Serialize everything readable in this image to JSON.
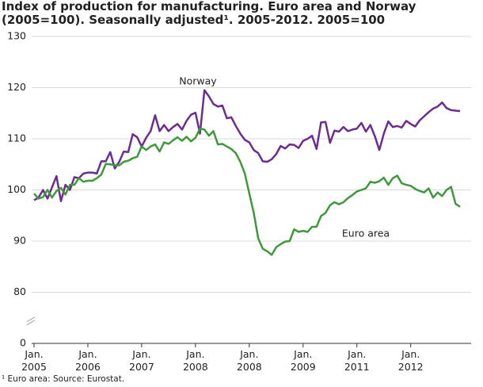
{
  "chart_data": {
    "type": "line",
    "title": "Index of production for manufacturing. Euro area and Norway (2005=100). Seasonally adjusted¹. 2005-2012. 2005=100",
    "note": "¹ Euro area: Source: Eurostat.",
    "categories": [
      "Jan.\n2005",
      null,
      null,
      null,
      null,
      null,
      null,
      null,
      null,
      null,
      null,
      null,
      "Jan.\n2006",
      null,
      null,
      null,
      null,
      null,
      null,
      null,
      null,
      null,
      null,
      null,
      "Jan.\n2007",
      null,
      null,
      null,
      null,
      null,
      null,
      null,
      null,
      null,
      null,
      null,
      "Jan.\n2008",
      null,
      null,
      null,
      null,
      null,
      null,
      null,
      null,
      null,
      null,
      null,
      "Jan.\n2008",
      null,
      null,
      null,
      null,
      null,
      null,
      null,
      null,
      null,
      null,
      null,
      "Jan.\n2009",
      null,
      null,
      null,
      null,
      null,
      null,
      null,
      null,
      null,
      null,
      null,
      "Jan.\n2011",
      null,
      null,
      null,
      null,
      null,
      null,
      null,
      null,
      null,
      null,
      null,
      "Jan.\n2012",
      null,
      null,
      null,
      null,
      null,
      null,
      null,
      null,
      null,
      null,
      null
    ],
    "series": [
      {
        "name": "Norway",
        "color": "#6b2d8f",
        "values": [
          98,
          98.5,
          100,
          98.3,
          100.5,
          102.7,
          97.8,
          101,
          100,
          102.5,
          102.3,
          103.2,
          103.4,
          103.4,
          103.2,
          105.6,
          105.6,
          107.4,
          104.2,
          105.5,
          107.5,
          107.4,
          110.9,
          110.3,
          108.5,
          110.2,
          111.5,
          114.6,
          111.5,
          112.7,
          111.5,
          112.3,
          112.9,
          111.8,
          113.5,
          114.7,
          115.1,
          111,
          119.5,
          118.3,
          116.8,
          116.3,
          116.5,
          114,
          114.2,
          112.5,
          111,
          109.8,
          109.3,
          107.8,
          107.2,
          105.6,
          105.5,
          106,
          107,
          108.6,
          108.1,
          108.9,
          108.8,
          108.2,
          109.6,
          110,
          110.6,
          108,
          113.2,
          113.3,
          109.2,
          111.6,
          111.4,
          112.3,
          111.5,
          111.8,
          112,
          113.1,
          111.4,
          112.7,
          110.5,
          107.8,
          111,
          113.4,
          112.3,
          112.5,
          112.2,
          113.5,
          112.9,
          112.4,
          113.6,
          114.4,
          115.2,
          115.9,
          116.3,
          117.1,
          116,
          115.6,
          115.5,
          115.4
        ]
      },
      {
        "name": "Euro area",
        "color": "#3f993b",
        "values": [
          99.3,
          98.3,
          98.6,
          100,
          98.5,
          99.8,
          100.4,
          99.1,
          101,
          101,
          102.3,
          101.6,
          101.8,
          101.8,
          102.3,
          103,
          105.1,
          105,
          104.8,
          104.8,
          105.5,
          105.7,
          106.2,
          106.5,
          108.5,
          107.8,
          108.5,
          108.9,
          107.5,
          109.3,
          109,
          109.7,
          110.3,
          109.6,
          110.4,
          109.5,
          110.2,
          112,
          111.8,
          110.6,
          111.5,
          108.9,
          109,
          108.5,
          108,
          107.2,
          105.5,
          103.2,
          99.3,
          95.5,
          90.5,
          88.5,
          88,
          87.3,
          88.8,
          89.4,
          89.9,
          90,
          92.3,
          91.8,
          92,
          91.8,
          92.8,
          92.8,
          94.9,
          95.5,
          97,
          97.6,
          97.2,
          97.6,
          98.4,
          99,
          99.7,
          100,
          100.3,
          101.6,
          101.4,
          101.7,
          102.4,
          101,
          102.3,
          102.8,
          101.3,
          101,
          100.8,
          100.2,
          99.8,
          99.5,
          100.3,
          98.5,
          99.5,
          98.8,
          100,
          100.6,
          97.3,
          96.7
        ]
      }
    ],
    "annotations": [
      "Norway",
      "Euro area"
    ],
    "ylim": [
      0,
      130
    ],
    "y_break": [
      0,
      70
    ],
    "yticks": [
      0,
      80,
      90,
      100,
      110,
      120,
      130
    ],
    "grid": true
  }
}
